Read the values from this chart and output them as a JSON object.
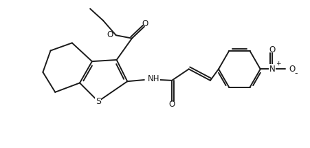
{
  "bg_color": "#ffffff",
  "line_color": "#1a1a1a",
  "line_width": 1.4,
  "figsize": [
    4.51,
    2.15
  ],
  "dpi": 100,
  "xlim": [
    0,
    10
  ],
  "ylim": [
    0,
    4.78
  ]
}
